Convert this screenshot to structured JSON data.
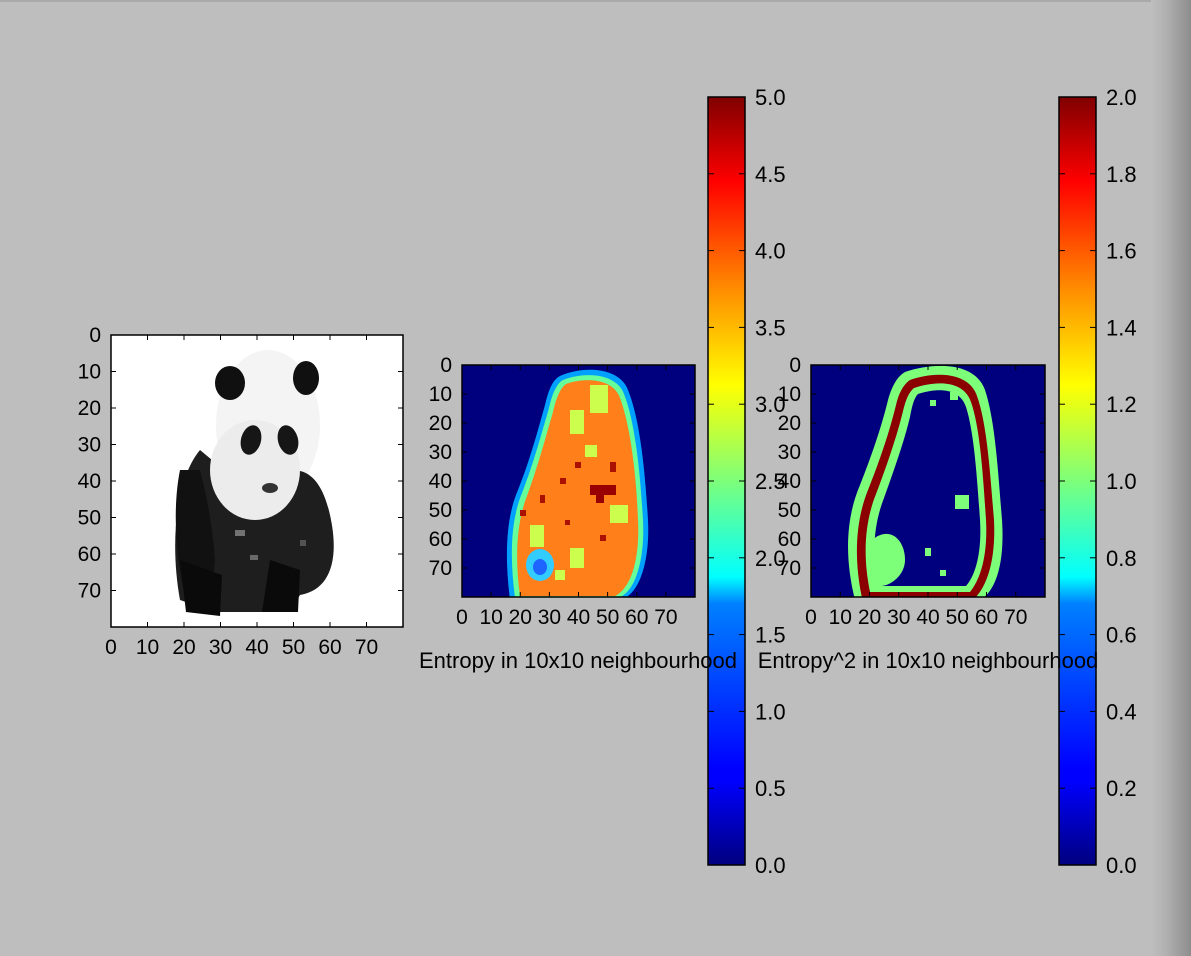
{
  "figure": {
    "background": "#bebebe"
  },
  "chart_data": [
    {
      "type": "heatmap",
      "description_key": "panel-1",
      "title": "",
      "xlabel": "",
      "ylabel": "",
      "colormap": "gray",
      "xlim": [
        0,
        80
      ],
      "ylim": [
        80,
        0
      ],
      "x_ticks": [
        "0",
        "10",
        "20",
        "30",
        "40",
        "50",
        "60",
        "70"
      ],
      "y_ticks": [
        "0",
        "10",
        "20",
        "30",
        "40",
        "50",
        "60",
        "70"
      ]
    },
    {
      "type": "heatmap",
      "description_key": "panel-2",
      "title": "",
      "xlabel": "Entropy in 10x10 neighbourhood",
      "ylabel": "",
      "colormap": "jet",
      "xlim": [
        0,
        80
      ],
      "ylim": [
        80,
        0
      ],
      "x_ticks": [
        "0",
        "10",
        "20",
        "30",
        "40",
        "50",
        "60",
        "70"
      ],
      "y_ticks": [
        "0",
        "10",
        "20",
        "30",
        "40",
        "50",
        "60",
        "70"
      ],
      "colorbar": {
        "range": [
          0.0,
          5.0
        ],
        "ticks": [
          "0.0",
          "0.5",
          "1.0",
          "1.5",
          "2.0",
          "2.5",
          "3.0",
          "3.5",
          "4.0",
          "4.5",
          "5.0"
        ]
      }
    },
    {
      "type": "heatmap",
      "description_key": "panel-3",
      "title": "",
      "xlabel": "Entropy^2 in 10x10 neighbourhood",
      "ylabel": "",
      "colormap": "jet",
      "xlim": [
        0,
        80
      ],
      "ylim": [
        80,
        0
      ],
      "x_ticks": [
        "0",
        "10",
        "20",
        "30",
        "40",
        "50",
        "60",
        "70"
      ],
      "y_ticks": [
        "0",
        "10",
        "20",
        "30",
        "40",
        "50",
        "60",
        "70"
      ],
      "colorbar": {
        "range": [
          0.0,
          2.0
        ],
        "ticks": [
          "0.0",
          "0.2",
          "0.4",
          "0.6",
          "0.8",
          "1.0",
          "1.2",
          "1.4",
          "1.6",
          "1.8",
          "2.0"
        ]
      }
    }
  ]
}
